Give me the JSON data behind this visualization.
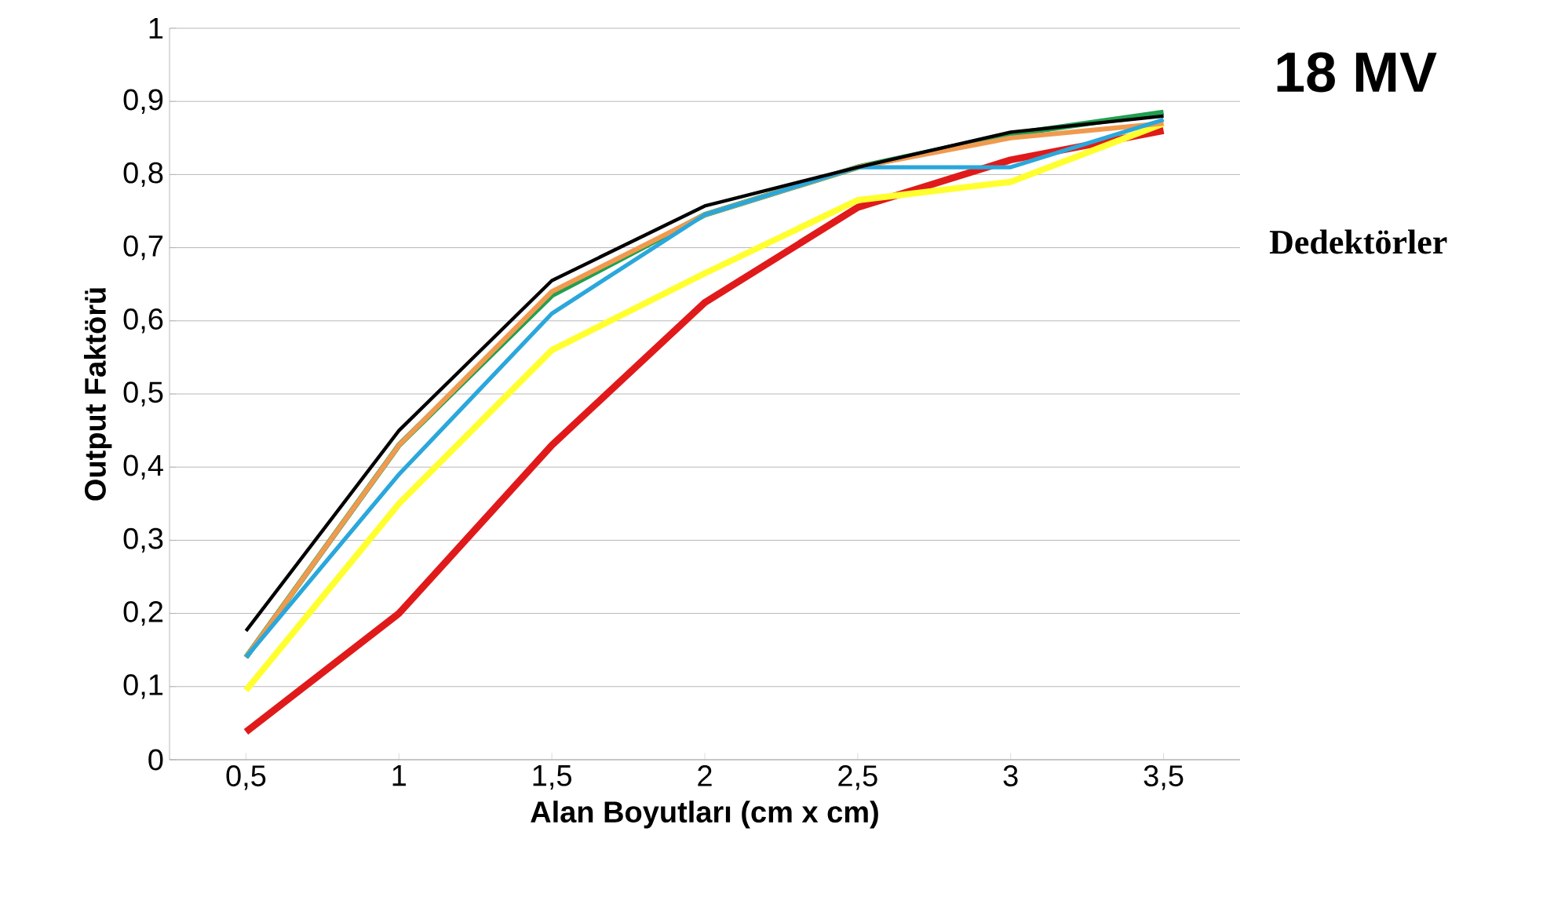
{
  "chart_data": {
    "type": "line",
    "title": "18 MV",
    "xlabel": "Alan Boyutları (cm x cm)",
    "ylabel": "Output Faktörü",
    "legend_title": "Dedektörler",
    "categories": [
      "0,5",
      "1",
      "1,5",
      "2",
      "2,5",
      "3",
      "3,5"
    ],
    "series": [
      {
        "color": "#000000",
        "values": [
          0.176,
          0.45,
          0.655,
          0.757,
          0.81,
          0.858,
          0.88
        ]
      },
      {
        "color": "#2aa7db",
        "values": [
          0.14,
          0.39,
          0.61,
          0.745,
          0.81,
          0.81,
          0.875
        ]
      },
      {
        "color": "#f09a50",
        "values": [
          0.14,
          0.43,
          0.64,
          0.745,
          0.81,
          0.85,
          0.87
        ]
      },
      {
        "color": "#20a050",
        "values": [
          0.14,
          0.43,
          0.635,
          0.745,
          0.81,
          0.855,
          0.885
        ]
      },
      {
        "color": "#ffff30",
        "values": [
          0.095,
          0.35,
          0.56,
          0.665,
          0.765,
          0.79,
          0.87
        ]
      },
      {
        "color": "#e01a1a",
        "values": [
          0.038,
          0.2,
          0.43,
          0.625,
          0.755,
          0.82,
          0.86
        ]
      }
    ],
    "ylim": [
      0,
      1
    ],
    "yticks": [
      0,
      {
        "value": 0.1,
        "label": "0,1"
      },
      {
        "value": 0.2,
        "label": "0,2"
      },
      {
        "value": 0.3,
        "label": "0,3"
      },
      {
        "value": 0.4,
        "label": "0,4"
      },
      {
        "value": 0.5,
        "label": "0,5"
      },
      {
        "value": 0.6,
        "label": "0,6"
      },
      {
        "value": 0.7,
        "label": "0,7"
      },
      {
        "value": 0.8,
        "label": "0,8"
      },
      {
        "value": 0.9,
        "label": "0,9"
      },
      1
    ],
    "grid": "y",
    "marker": "none",
    "line_style": "solid"
  }
}
